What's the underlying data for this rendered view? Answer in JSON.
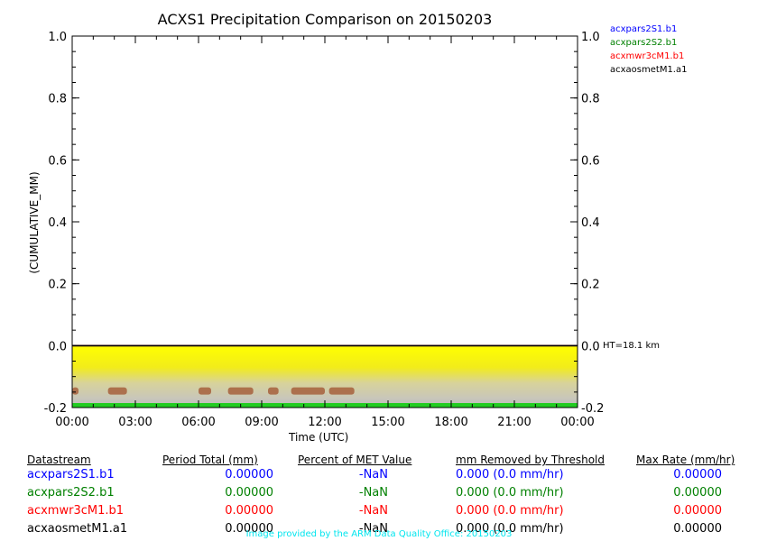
{
  "chart_data": {
    "type": "line",
    "title": "ACXS1 Precipitation Comparison on 20150203",
    "xlabel": "Time (UTC)",
    "ylabel": "(CUMULATIVE_MM)",
    "x_ticks": [
      "00:00",
      "03:00",
      "06:00",
      "09:00",
      "12:00",
      "15:00",
      "18:00",
      "21:00",
      "00:00"
    ],
    "y_ticks": [
      "-0.2",
      "0.0",
      "0.2",
      "0.4",
      "0.6",
      "0.8",
      "1.0"
    ],
    "y_ticks_right": [
      "-0.2",
      "0.0",
      "0.2",
      "0.4",
      "0.6",
      "0.8",
      "1.0"
    ],
    "ylim": [
      -0.2,
      1.0
    ],
    "xlim_hours": [
      0,
      24
    ],
    "height_label": "HT=18.1 km",
    "series": [
      {
        "name": "acxpars2S1.b1",
        "color": "#0000ff",
        "x_hours": [
          0,
          24
        ],
        "values": [
          0,
          0
        ]
      },
      {
        "name": "acxpars2S2.b1",
        "color": "#008000",
        "x_hours": [
          0,
          24
        ],
        "values": [
          0,
          0
        ]
      },
      {
        "name": "acxmwr3cM1.b1",
        "color": "#ff0000",
        "x_hours": [
          0,
          24
        ],
        "values": [
          0,
          0
        ]
      },
      {
        "name": "acxaosmetM1.a1",
        "color": "#000000",
        "x_hours": [
          0,
          24
        ],
        "values": [
          0,
          0
        ]
      }
    ]
  },
  "table": {
    "headers": [
      "Datastream",
      "Period Total (mm)",
      "Percent of MET Value",
      "mm Removed by Threshold",
      "Max Rate (mm/hr)"
    ],
    "rows": [
      {
        "color": "#0000ff",
        "cells": [
          "acxpars2S1.b1",
          "0.00000",
          "-NaN",
          "0.000 (0.0 mm/hr)",
          "0.00000"
        ]
      },
      {
        "color": "#008000",
        "cells": [
          "acxpars2S2.b1",
          "0.00000",
          "-NaN",
          "0.000 (0.0 mm/hr)",
          "0.00000"
        ]
      },
      {
        "color": "#ff0000",
        "cells": [
          "acxmwr3cM1.b1",
          "0.00000",
          "-NaN",
          "0.000 (0.0 mm/hr)",
          "0.00000"
        ]
      },
      {
        "color": "#000000",
        "cells": [
          "acxaosmetM1.a1",
          "0.00000",
          "-NaN",
          "0.000 (0.0 mm/hr)",
          "0.00000"
        ]
      }
    ]
  },
  "credit": "Image provided by the ARM Data Quality Office: 20150203"
}
